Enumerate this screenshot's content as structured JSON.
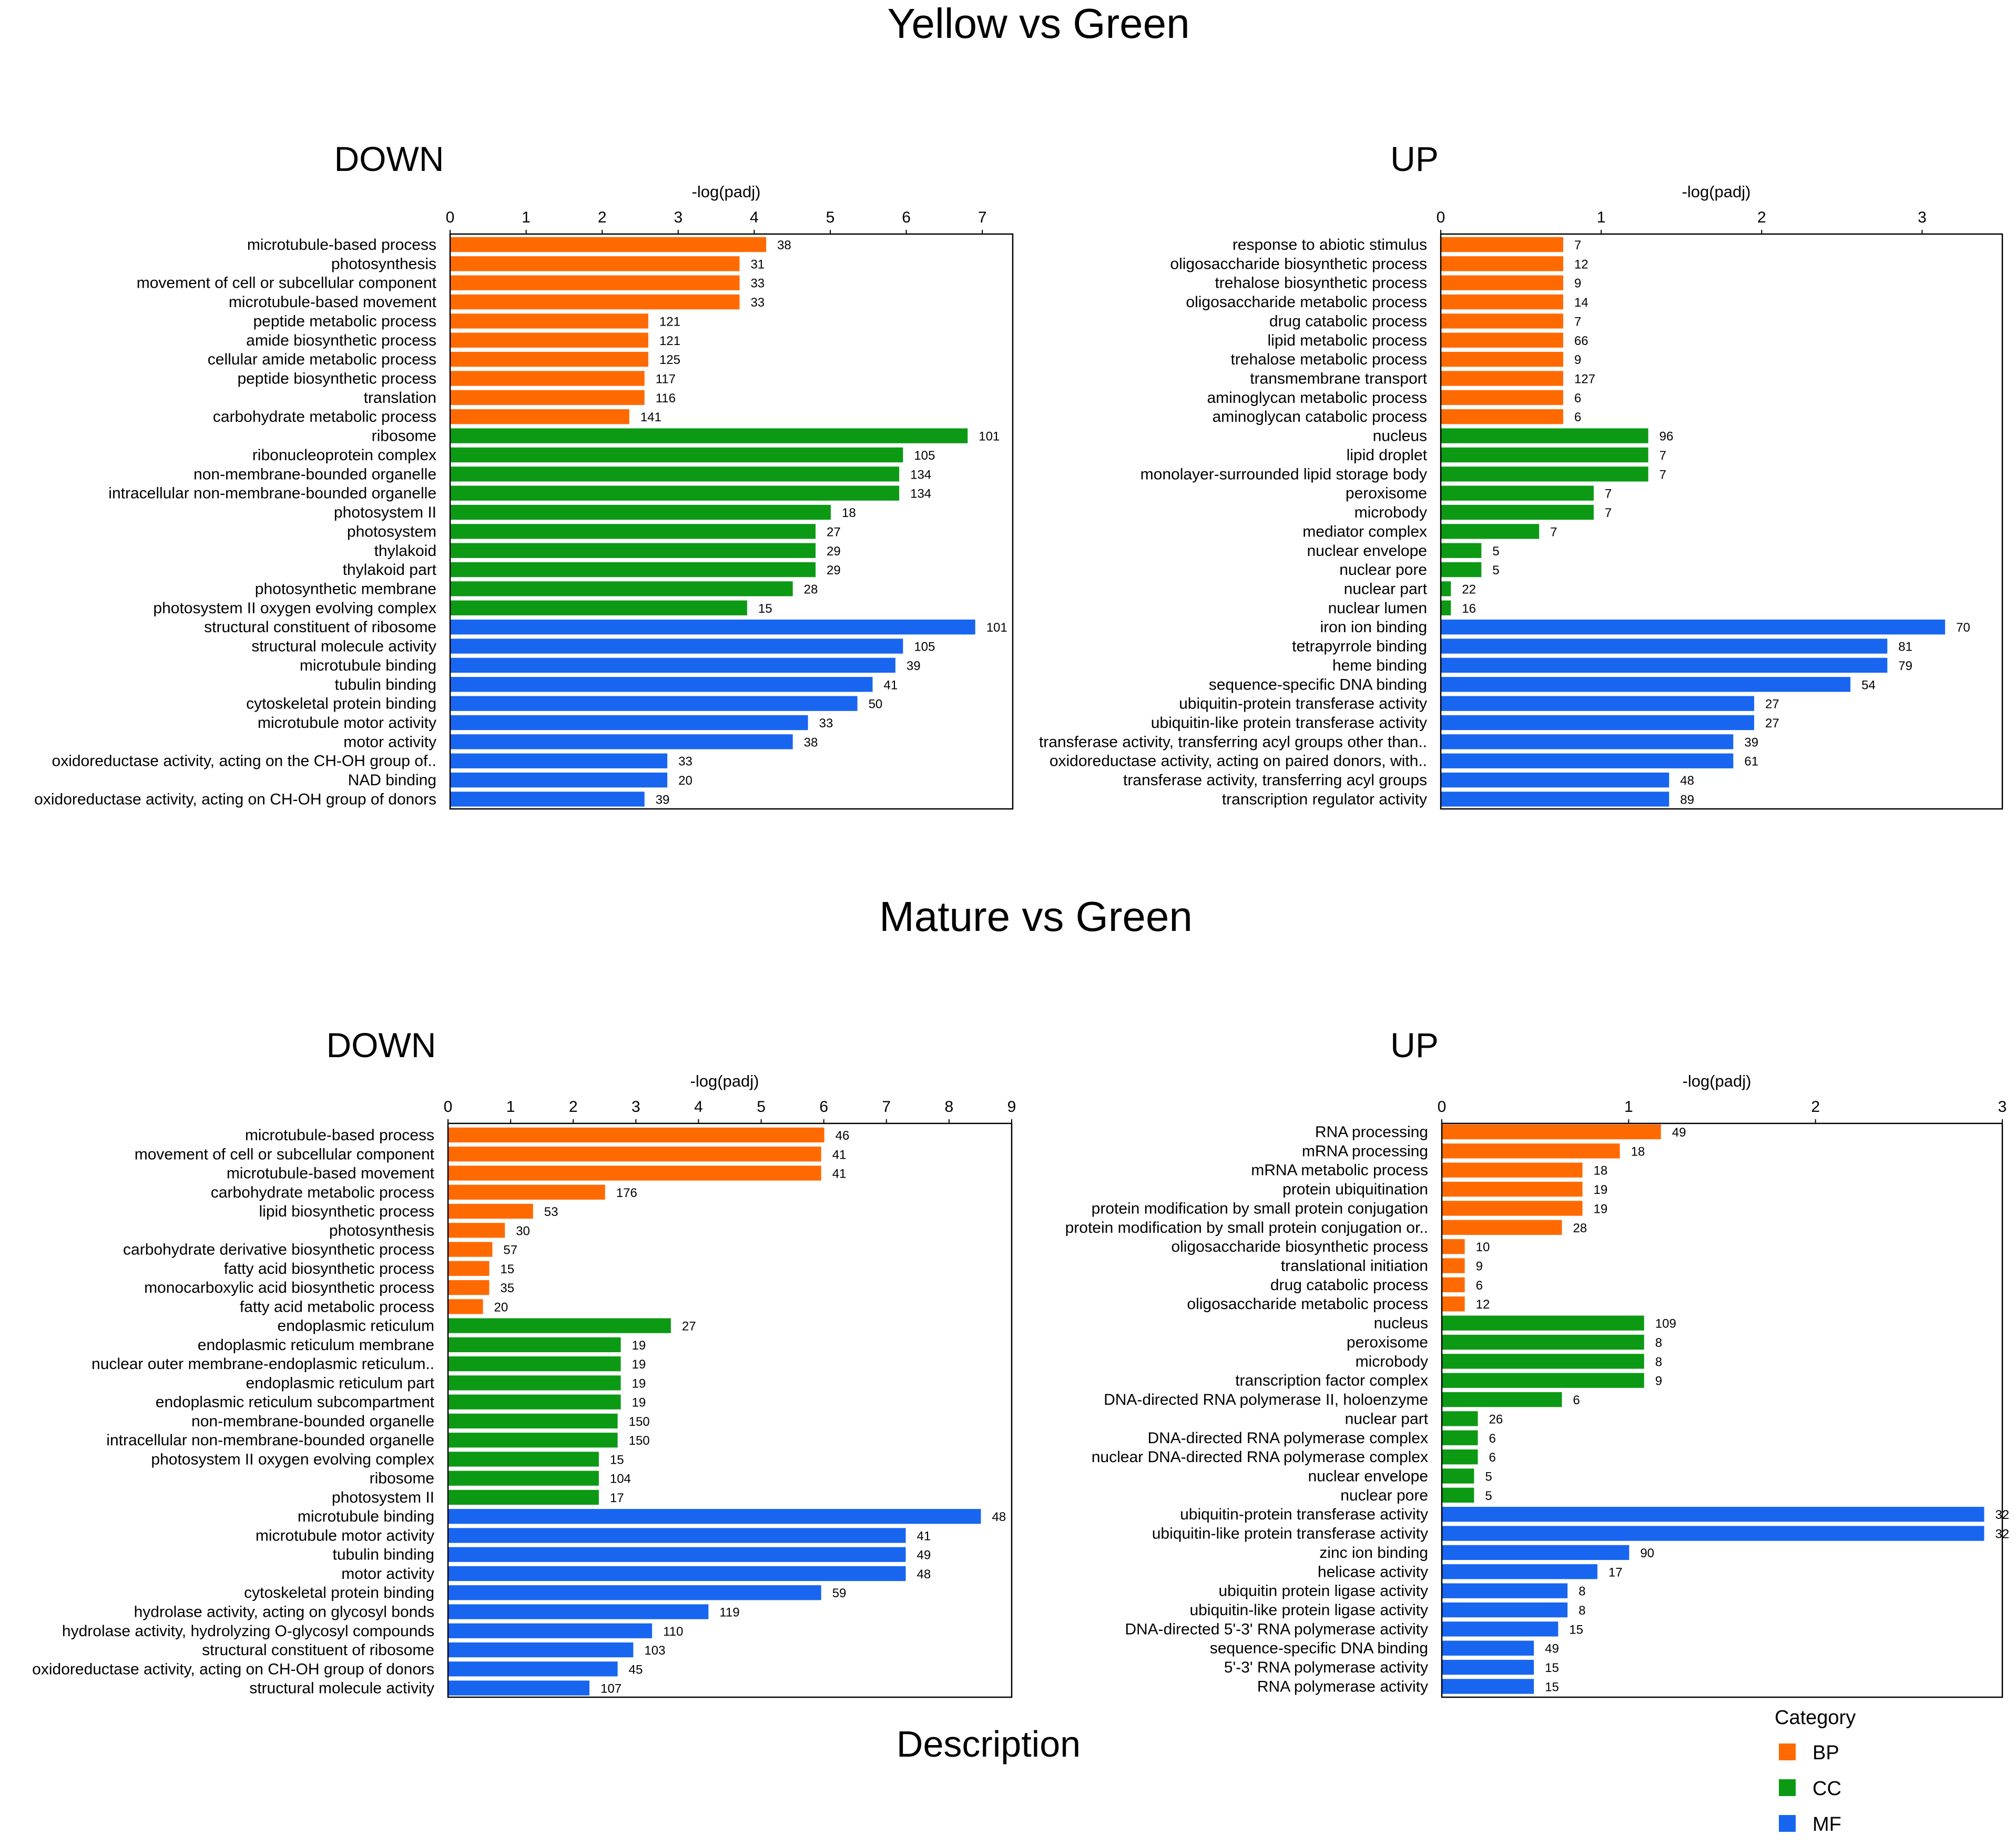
{
  "colors": {
    "BP": "#ff6a00",
    "CC": "#0c9a14",
    "MF": "#1865f0"
  },
  "titles": {
    "section1": "Yellow vs Green",
    "section2": "Mature vs Green"
  },
  "x_axis_title": "Description",
  "legend": {
    "title": "Category",
    "items": [
      {
        "key": "BP",
        "label": "BP"
      },
      {
        "key": "CC",
        "label": "CC"
      },
      {
        "key": "MF",
        "label": "MF"
      }
    ]
  },
  "chart_data": [
    {
      "id": "yg_down",
      "type": "bar",
      "orientation": "horizontal",
      "title": "DOWN",
      "xlabel": "-log(padj)",
      "xlim": [
        0,
        7.4
      ],
      "ticks": [
        0,
        1,
        2,
        3,
        4,
        5,
        6,
        7
      ],
      "bars": [
        {
          "label": "microtubule-based process",
          "value": 4.15,
          "count": "38",
          "cat": "BP"
        },
        {
          "label": "photosynthesis",
          "value": 3.8,
          "count": "31",
          "cat": "BP"
        },
        {
          "label": "movement of cell or subcellular component",
          "value": 3.8,
          "count": "33",
          "cat": "BP"
        },
        {
          "label": "microtubule-based movement",
          "value": 3.8,
          "count": "33",
          "cat": "BP"
        },
        {
          "label": "peptide metabolic process",
          "value": 2.6,
          "count": "121",
          "cat": "BP"
        },
        {
          "label": "amide biosynthetic process",
          "value": 2.6,
          "count": "121",
          "cat": "BP"
        },
        {
          "label": "cellular amide metabolic process",
          "value": 2.6,
          "count": "125",
          "cat": "BP"
        },
        {
          "label": "peptide biosynthetic process",
          "value": 2.55,
          "count": "117",
          "cat": "BP"
        },
        {
          "label": "translation",
          "value": 2.55,
          "count": "116",
          "cat": "BP"
        },
        {
          "label": "carbohydrate metabolic process",
          "value": 2.35,
          "count": "141",
          "cat": "BP"
        },
        {
          "label": "ribosome",
          "value": 6.8,
          "count": "101",
          "cat": "CC"
        },
        {
          "label": "ribonucleoprotein complex",
          "value": 5.95,
          "count": "105",
          "cat": "CC"
        },
        {
          "label": "non-membrane-bounded organelle",
          "value": 5.9,
          "count": "134",
          "cat": "CC"
        },
        {
          "label": "intracellular non-membrane-bounded organelle",
          "value": 5.9,
          "count": "134",
          "cat": "CC"
        },
        {
          "label": "photosystem II",
          "value": 5.0,
          "count": "18",
          "cat": "CC"
        },
        {
          "label": "photosystem",
          "value": 4.8,
          "count": "27",
          "cat": "CC"
        },
        {
          "label": "thylakoid",
          "value": 4.8,
          "count": "29",
          "cat": "CC"
        },
        {
          "label": "thylakoid part",
          "value": 4.8,
          "count": "29",
          "cat": "CC"
        },
        {
          "label": "photosynthetic membrane",
          "value": 4.5,
          "count": "28",
          "cat": "CC"
        },
        {
          "label": "photosystem II oxygen evolving complex",
          "value": 3.9,
          "count": "15",
          "cat": "CC"
        },
        {
          "label": "structural constituent of ribosome",
          "value": 6.9,
          "count": "101",
          "cat": "MF"
        },
        {
          "label": "structural molecule activity",
          "value": 5.95,
          "count": "105",
          "cat": "MF"
        },
        {
          "label": "microtubule binding",
          "value": 5.85,
          "count": "39",
          "cat": "MF"
        },
        {
          "label": "tubulin binding",
          "value": 5.55,
          "count": "41",
          "cat": "MF"
        },
        {
          "label": "cytoskeletal protein binding",
          "value": 5.35,
          "count": "50",
          "cat": "MF"
        },
        {
          "label": "microtubule motor activity",
          "value": 4.7,
          "count": "33",
          "cat": "MF"
        },
        {
          "label": "motor activity",
          "value": 4.5,
          "count": "38",
          "cat": "MF"
        },
        {
          "label": "oxidoreductase activity, acting on the CH-OH group of..",
          "value": 2.85,
          "count": "33",
          "cat": "MF"
        },
        {
          "label": "NAD binding",
          "value": 2.85,
          "count": "20",
          "cat": "MF"
        },
        {
          "label": "oxidoreductase activity, acting on CH-OH group of donors",
          "value": 2.55,
          "count": "39",
          "cat": "MF"
        }
      ]
    },
    {
      "id": "yg_up",
      "type": "bar",
      "orientation": "horizontal",
      "title": "UP",
      "xlabel": "-log(padj)",
      "xlim": [
        0,
        3.5
      ],
      "ticks": [
        0,
        1,
        2,
        3
      ],
      "bars": [
        {
          "label": "response to abiotic stimulus",
          "value": 0.76,
          "count": "7",
          "cat": "BP"
        },
        {
          "label": "oligosaccharide biosynthetic process",
          "value": 0.76,
          "count": "12",
          "cat": "BP"
        },
        {
          "label": "trehalose biosynthetic process",
          "value": 0.76,
          "count": "9",
          "cat": "BP"
        },
        {
          "label": "oligosaccharide metabolic process",
          "value": 0.76,
          "count": "14",
          "cat": "BP"
        },
        {
          "label": "drug catabolic process",
          "value": 0.76,
          "count": "7",
          "cat": "BP"
        },
        {
          "label": "lipid metabolic process",
          "value": 0.76,
          "count": "66",
          "cat": "BP"
        },
        {
          "label": "trehalose metabolic process",
          "value": 0.76,
          "count": "9",
          "cat": "BP"
        },
        {
          "label": "transmembrane transport",
          "value": 0.76,
          "count": "127",
          "cat": "BP"
        },
        {
          "label": "aminoglycan metabolic process",
          "value": 0.76,
          "count": "6",
          "cat": "BP"
        },
        {
          "label": "aminoglycan catabolic process",
          "value": 0.76,
          "count": "6",
          "cat": "BP"
        },
        {
          "label": "nucleus",
          "value": 1.29,
          "count": "96",
          "cat": "CC"
        },
        {
          "label": "lipid droplet",
          "value": 1.29,
          "count": "7",
          "cat": "CC"
        },
        {
          "label": "monolayer-surrounded lipid storage body",
          "value": 1.29,
          "count": "7",
          "cat": "CC"
        },
        {
          "label": "peroxisome",
          "value": 0.95,
          "count": "7",
          "cat": "CC"
        },
        {
          "label": "microbody",
          "value": 0.95,
          "count": "7",
          "cat": "CC"
        },
        {
          "label": "mediator complex",
          "value": 0.61,
          "count": "7",
          "cat": "CC"
        },
        {
          "label": "nuclear envelope",
          "value": 0.25,
          "count": "5",
          "cat": "CC"
        },
        {
          "label": "nuclear pore",
          "value": 0.25,
          "count": "5",
          "cat": "CC"
        },
        {
          "label": "nuclear part",
          "value": 0.06,
          "count": "22",
          "cat": "CC"
        },
        {
          "label": "nuclear lumen",
          "value": 0.06,
          "count": "16",
          "cat": "CC"
        },
        {
          "label": "iron ion binding",
          "value": 3.14,
          "count": "70",
          "cat": "MF"
        },
        {
          "label": "tetrapyrrole binding",
          "value": 2.78,
          "count": "81",
          "cat": "MF"
        },
        {
          "label": "heme binding",
          "value": 2.78,
          "count": "79",
          "cat": "MF"
        },
        {
          "label": "sequence-specific DNA binding",
          "value": 2.55,
          "count": "54",
          "cat": "MF"
        },
        {
          "label": "ubiquitin-protein transferase activity",
          "value": 1.95,
          "count": "27",
          "cat": "MF"
        },
        {
          "label": "ubiquitin-like protein transferase activity",
          "value": 1.95,
          "count": "27",
          "cat": "MF"
        },
        {
          "label": "transferase activity, transferring acyl groups other than..",
          "value": 1.82,
          "count": "39",
          "cat": "MF"
        },
        {
          "label": "oxidoreductase activity, acting on paired donors, with..",
          "value": 1.82,
          "count": "61",
          "cat": "MF"
        },
        {
          "label": "transferase activity, transferring acyl groups",
          "value": 1.42,
          "count": "48",
          "cat": "MF"
        },
        {
          "label": "transcription regulator activity",
          "value": 1.42,
          "count": "89",
          "cat": "MF"
        }
      ]
    },
    {
      "id": "mg_down",
      "type": "bar",
      "orientation": "horizontal",
      "title": "DOWN",
      "xlabel": "-log(padj)",
      "xlim": [
        0,
        9.0
      ],
      "ticks": [
        0,
        1,
        2,
        3,
        4,
        5,
        6,
        7,
        8,
        9
      ],
      "bars": [
        {
          "label": "microtubule-based process",
          "value": 6.0,
          "count": "46",
          "cat": "BP"
        },
        {
          "label": "movement of cell or subcellular component",
          "value": 5.95,
          "count": "41",
          "cat": "BP"
        },
        {
          "label": "microtubule-based movement",
          "value": 5.95,
          "count": "41",
          "cat": "BP"
        },
        {
          "label": "carbohydrate metabolic process",
          "value": 2.5,
          "count": "176",
          "cat": "BP"
        },
        {
          "label": "lipid biosynthetic process",
          "value": 1.35,
          "count": "53",
          "cat": "BP"
        },
        {
          "label": "photosynthesis",
          "value": 0.9,
          "count": "30",
          "cat": "BP"
        },
        {
          "label": "carbohydrate derivative biosynthetic process",
          "value": 0.7,
          "count": "57",
          "cat": "BP"
        },
        {
          "label": "fatty acid biosynthetic process",
          "value": 0.65,
          "count": "15",
          "cat": "BP"
        },
        {
          "label": "monocarboxylic acid biosynthetic process",
          "value": 0.65,
          "count": "35",
          "cat": "BP"
        },
        {
          "label": "fatty acid metabolic process",
          "value": 0.55,
          "count": "20",
          "cat": "BP"
        },
        {
          "label": "endoplasmic reticulum",
          "value": 3.55,
          "count": "27",
          "cat": "CC"
        },
        {
          "label": "endoplasmic reticulum membrane",
          "value": 2.75,
          "count": "19",
          "cat": "CC"
        },
        {
          "label": "nuclear outer membrane-endoplasmic reticulum..",
          "value": 2.75,
          "count": "19",
          "cat": "CC"
        },
        {
          "label": "endoplasmic reticulum part",
          "value": 2.75,
          "count": "19",
          "cat": "CC"
        },
        {
          "label": "endoplasmic reticulum subcompartment",
          "value": 2.75,
          "count": "19",
          "cat": "CC"
        },
        {
          "label": "non-membrane-bounded organelle",
          "value": 2.7,
          "count": "150",
          "cat": "CC"
        },
        {
          "label": "intracellular non-membrane-bounded organelle",
          "value": 2.7,
          "count": "150",
          "cat": "CC"
        },
        {
          "label": "photosystem II oxygen evolving complex",
          "value": 2.4,
          "count": "15",
          "cat": "CC"
        },
        {
          "label": "ribosome",
          "value": 2.4,
          "count": "104",
          "cat": "CC"
        },
        {
          "label": "photosystem II",
          "value": 2.4,
          "count": "17",
          "cat": "CC"
        },
        {
          "label": "microtubule binding",
          "value": 8.5,
          "count": "48",
          "cat": "MF"
        },
        {
          "label": "microtubule motor activity",
          "value": 7.3,
          "count": "41",
          "cat": "MF"
        },
        {
          "label": "tubulin binding",
          "value": 7.3,
          "count": "49",
          "cat": "MF"
        },
        {
          "label": "motor activity",
          "value": 7.3,
          "count": "48",
          "cat": "MF"
        },
        {
          "label": "cytoskeletal protein binding",
          "value": 5.95,
          "count": "59",
          "cat": "MF"
        },
        {
          "label": "hydrolase activity, acting on glycosyl bonds",
          "value": 4.15,
          "count": "119",
          "cat": "MF"
        },
        {
          "label": "hydrolase activity, hydrolyzing O-glycosyl compounds",
          "value": 3.25,
          "count": "110",
          "cat": "MF"
        },
        {
          "label": "structural constituent of ribosome",
          "value": 2.95,
          "count": "103",
          "cat": "MF"
        },
        {
          "label": "oxidoreductase activity, acting on CH-OH group of donors",
          "value": 2.7,
          "count": "45",
          "cat": "MF"
        },
        {
          "label": "structural molecule activity",
          "value": 2.25,
          "count": "107",
          "cat": "MF"
        }
      ]
    },
    {
      "id": "mg_up",
      "type": "bar",
      "orientation": "horizontal",
      "title": "UP",
      "xlabel": "-log(padj)",
      "xlim": [
        0,
        3.0
      ],
      "ticks": [
        0,
        1,
        2,
        3
      ],
      "bars": [
        {
          "label": "RNA processing",
          "value": 1.17,
          "count": "49",
          "cat": "BP"
        },
        {
          "label": "mRNA processing",
          "value": 0.95,
          "count": "18",
          "cat": "BP"
        },
        {
          "label": "mRNA metabolic process",
          "value": 0.75,
          "count": "18",
          "cat": "BP"
        },
        {
          "label": "protein ubiquitination",
          "value": 0.75,
          "count": "19",
          "cat": "BP"
        },
        {
          "label": "protein modification by small protein conjugation",
          "value": 0.75,
          "count": "19",
          "cat": "BP"
        },
        {
          "label": "protein modification by small protein conjugation or..",
          "value": 0.64,
          "count": "28",
          "cat": "BP"
        },
        {
          "label": "oligosaccharide biosynthetic process",
          "value": 0.12,
          "count": "10",
          "cat": "BP"
        },
        {
          "label": "translational initiation",
          "value": 0.12,
          "count": "9",
          "cat": "BP"
        },
        {
          "label": "drug catabolic process",
          "value": 0.12,
          "count": "6",
          "cat": "BP"
        },
        {
          "label": "oligosaccharide metabolic process",
          "value": 0.12,
          "count": "12",
          "cat": "BP"
        },
        {
          "label": "nucleus",
          "value": 1.08,
          "count": "109",
          "cat": "CC"
        },
        {
          "label": "peroxisome",
          "value": 1.08,
          "count": "8",
          "cat": "CC"
        },
        {
          "label": "microbody",
          "value": 1.08,
          "count": "8",
          "cat": "CC"
        },
        {
          "label": "transcription factor complex",
          "value": 1.08,
          "count": "9",
          "cat": "CC"
        },
        {
          "label": "DNA-directed RNA polymerase II, holoenzyme",
          "value": 0.64,
          "count": "6",
          "cat": "CC"
        },
        {
          "label": "nuclear part",
          "value": 0.19,
          "count": "26",
          "cat": "CC"
        },
        {
          "label": "DNA-directed RNA polymerase complex",
          "value": 0.19,
          "count": "6",
          "cat": "CC"
        },
        {
          "label": "nuclear DNA-directed RNA polymerase complex",
          "value": 0.19,
          "count": "6",
          "cat": "CC"
        },
        {
          "label": "nuclear envelope",
          "value": 0.17,
          "count": "5",
          "cat": "CC"
        },
        {
          "label": "nuclear pore",
          "value": 0.17,
          "count": "5",
          "cat": "CC"
        },
        {
          "label": "ubiquitin-protein transferase activity",
          "value": 2.9,
          "count": "32",
          "cat": "MF"
        },
        {
          "label": "ubiquitin-like protein transferase activity",
          "value": 2.9,
          "count": "32",
          "cat": "MF"
        },
        {
          "label": "zinc ion binding",
          "value": 1.0,
          "count": "90",
          "cat": "MF"
        },
        {
          "label": "helicase activity",
          "value": 0.83,
          "count": "17",
          "cat": "MF"
        },
        {
          "label": "ubiquitin protein ligase activity",
          "value": 0.67,
          "count": "8",
          "cat": "MF"
        },
        {
          "label": "ubiquitin-like protein ligase activity",
          "value": 0.67,
          "count": "8",
          "cat": "MF"
        },
        {
          "label": "DNA-directed 5'-3' RNA polymerase activity",
          "value": 0.62,
          "count": "15",
          "cat": "MF"
        },
        {
          "label": "sequence-specific DNA binding",
          "value": 0.49,
          "count": "49",
          "cat": "MF"
        },
        {
          "label": "5'-3' RNA polymerase activity",
          "value": 0.49,
          "count": "15",
          "cat": "MF"
        },
        {
          "label": "RNA polymerase activity",
          "value": 0.49,
          "count": "15",
          "cat": "MF"
        }
      ]
    }
  ]
}
